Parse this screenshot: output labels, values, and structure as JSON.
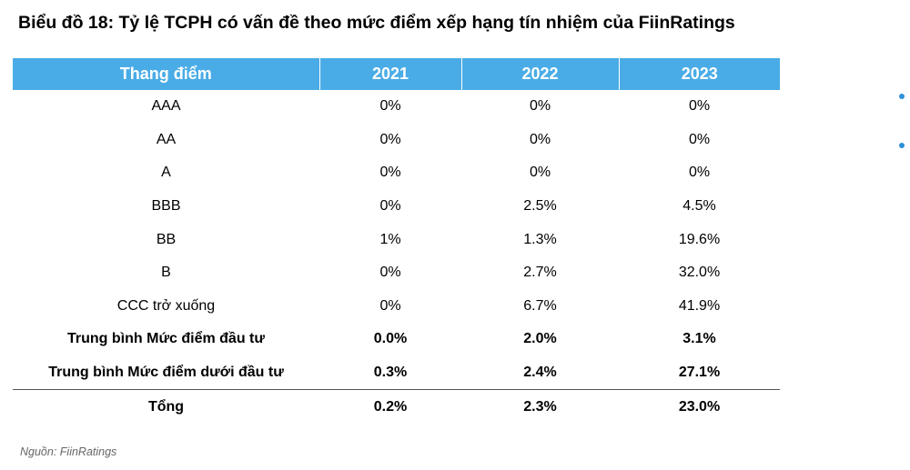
{
  "title": "Biểu đồ 18: Tỷ lệ TCPH có vấn đề theo mức điểm xếp hạng tín nhiệm của FiinRatings",
  "table": {
    "headers": [
      "Thang điểm",
      "2021",
      "2022",
      "2023"
    ],
    "rows": [
      {
        "label": "AAA",
        "values": [
          "0%",
          "0%",
          "0%"
        ]
      },
      {
        "label": "AA",
        "values": [
          "0%",
          "0%",
          "0%"
        ]
      },
      {
        "label": "A",
        "values": [
          "0%",
          "0%",
          "0%"
        ]
      },
      {
        "label": "BBB",
        "values": [
          "0%",
          "2.5%",
          "4.5%"
        ]
      },
      {
        "label": "BB",
        "values": [
          "1%",
          "1.3%",
          "19.6%"
        ]
      },
      {
        "label": "B",
        "values": [
          "0%",
          "2.7%",
          "32.0%"
        ]
      },
      {
        "label": "CCC trở xuống",
        "values": [
          "0%",
          "6.7%",
          "41.9%"
        ]
      },
      {
        "label": "Trung bình Mức điểm đầu tư",
        "values": [
          "0.0%",
          "2.0%",
          "3.1%"
        ]
      },
      {
        "label": "Trung bình Mức điểm dưới đầu tư",
        "values": [
          "0.3%",
          "2.4%",
          "27.1%"
        ]
      }
    ],
    "total": {
      "label": "Tổng",
      "values": [
        "0.2%",
        "2.3%",
        "23.0%"
      ]
    }
  },
  "source": "Nguồn: FiinRatings",
  "colors": {
    "header_bg": "#4aace6",
    "header_text": "#ffffff",
    "bullet": "#2e8fd8"
  }
}
